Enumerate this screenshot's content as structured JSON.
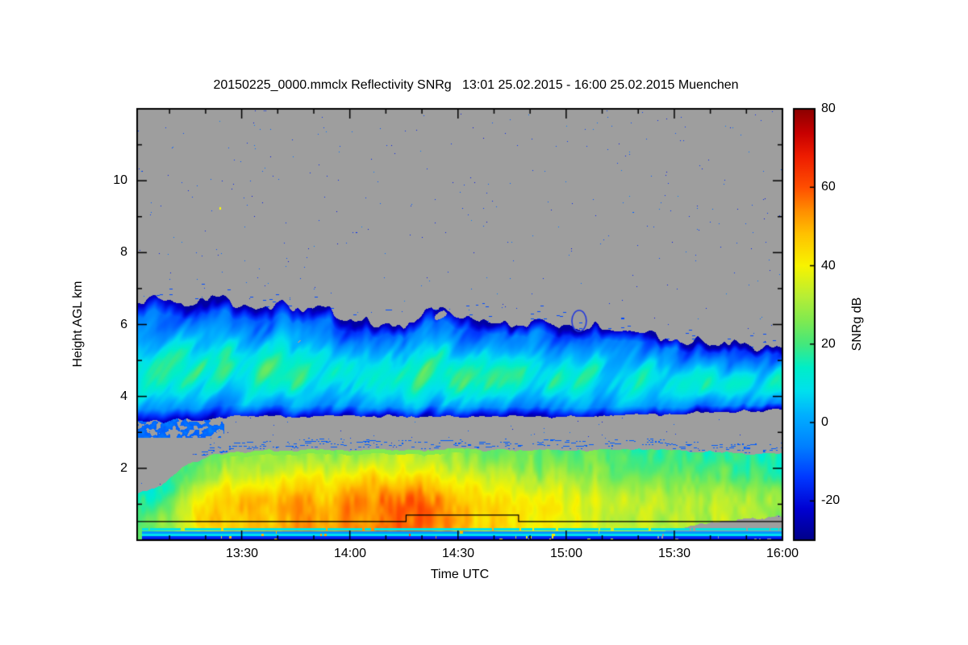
{
  "chart_data": {
    "type": "heatmap",
    "title": "20150225_0000.mmclx Reflectivity SNRg   13:01 25.02.2015 - 16:00 25.02.2015 Muenchen",
    "xlabel": "Time UTC",
    "ylabel": "Height AGL km",
    "x_range_hours_utc": [
      13.0167,
      16.0
    ],
    "x_tick_values": [
      13.5,
      14.0,
      14.5,
      15.0,
      15.5,
      16.0
    ],
    "x_tick_labels": [
      "13:30",
      "14:00",
      "14:30",
      "15:00",
      "15:30",
      "16:00"
    ],
    "x_minor_tick_step_hours": 0.166667,
    "y_range_km": [
      0,
      12
    ],
    "y_tick_values": [
      2,
      4,
      6,
      8,
      10
    ],
    "y_tick_labels": [
      "2",
      "4",
      "6",
      "8",
      "10"
    ],
    "y_minor_tick_step_km": 1,
    "no_data_color": "#9e9e9e",
    "colorbar": {
      "label": "SNRg dB",
      "range_db": [
        -30,
        80
      ],
      "tick_values": [
        -20,
        0,
        20,
        40,
        60,
        80
      ],
      "tick_labels": [
        "-20",
        "0",
        "20",
        "40",
        "60",
        "80"
      ],
      "stops": [
        [
          -30,
          "#000089"
        ],
        [
          -22,
          "#0000d2"
        ],
        [
          -14,
          "#0038ff"
        ],
        [
          -6,
          "#0080ff"
        ],
        [
          2,
          "#00b0ff"
        ],
        [
          8,
          "#00e0ee"
        ],
        [
          14,
          "#00eec8"
        ],
        [
          20,
          "#44e87c"
        ],
        [
          26,
          "#80ea50"
        ],
        [
          32,
          "#b6ee36"
        ],
        [
          40,
          "#f8f400"
        ],
        [
          48,
          "#ffc200"
        ],
        [
          54,
          "#ff8e00"
        ],
        [
          60,
          "#ff4e00"
        ],
        [
          68,
          "#ee1c00"
        ],
        [
          74,
          "#c60000"
        ],
        [
          80,
          "#8c0000"
        ]
      ]
    },
    "grid": {
      "t_start_hours": 13.0,
      "t_step_hours": 0.125,
      "upper_cloud_layer": {
        "top_km": [
          6.65,
          6.7,
          6.7,
          6.65,
          6.6,
          6.55,
          6.5,
          6.4,
          6.1,
          6.05,
          6.0,
          6.45,
          6.2,
          6.1,
          6.05,
          6.0,
          5.9,
          5.95,
          5.8,
          5.7,
          5.6,
          5.55,
          5.5,
          5.4,
          5.3
        ],
        "bottom_km": [
          3.3,
          3.3,
          3.35,
          3.4,
          3.45,
          3.45,
          3.45,
          3.45,
          3.45,
          3.45,
          3.45,
          3.45,
          3.45,
          3.45,
          3.45,
          3.45,
          3.45,
          3.45,
          3.45,
          3.5,
          3.5,
          3.55,
          3.55,
          3.6,
          3.6
        ],
        "peak_snr_db": [
          14,
          15,
          14,
          13,
          15,
          16,
          17,
          16,
          15,
          17,
          18,
          19,
          16,
          15,
          14,
          13,
          12,
          11,
          10,
          10,
          11,
          10,
          10,
          10,
          12
        ]
      },
      "lower_precip_layer": {
        "top_km": [
          1.3,
          1.5,
          2.1,
          2.4,
          2.45,
          2.5,
          2.5,
          2.55,
          2.5,
          2.55,
          2.5,
          2.5,
          2.55,
          2.5,
          2.5,
          2.5,
          2.5,
          2.5,
          2.55,
          2.5,
          2.5,
          2.45,
          2.45,
          2.4,
          2.4
        ],
        "base_km": [
          0,
          0,
          0,
          0,
          0,
          0,
          0,
          0,
          0,
          0,
          0,
          0,
          0,
          0,
          0,
          0,
          0,
          0,
          0,
          0.1,
          0.3,
          0.45,
          0.55,
          0.6,
          0.65
        ],
        "peak_snr_db": [
          22,
          28,
          40,
          48,
          52,
          50,
          54,
          52,
          55,
          58,
          60,
          58,
          52,
          48,
          45,
          42,
          40,
          38,
          38,
          36,
          35,
          34,
          33,
          32,
          30
        ]
      }
    },
    "overlay_step_line": {
      "color": "#000000",
      "points_t_h": [
        [
          13.0167,
          0.52
        ],
        [
          14.26,
          0.52
        ],
        [
          14.26,
          0.7
        ],
        [
          14.78,
          0.7
        ],
        [
          14.78,
          0.52
        ],
        [
          16.0,
          0.52
        ]
      ]
    },
    "clutter_stripes": [
      {
        "h_km": 0.3,
        "snr_db": 10
      },
      {
        "h_km": 0.22,
        "snr_db": -2
      },
      {
        "h_km": 0.15,
        "snr_db": 8
      },
      {
        "h_km": 0.07,
        "snr_db": -16
      },
      {
        "h_km": 0.03,
        "snr_db": -24
      }
    ],
    "isolated_speckle": {
      "t_hours": 13.4,
      "h_km": 9.25,
      "color": "#ffff00"
    },
    "detached_ring": {
      "t_hours": 15.06,
      "h_km": 6.1,
      "color": "#2238dd"
    }
  }
}
